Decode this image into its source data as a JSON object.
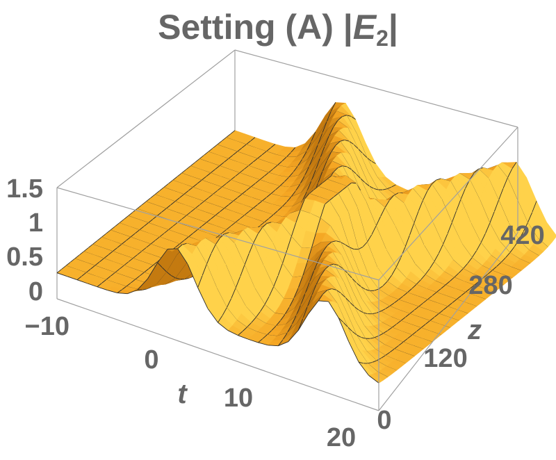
{
  "chart_data": {
    "type": "surface3d",
    "title": {
      "prefix": "Setting (A) |",
      "symbol": "E",
      "subscript": "2",
      "suffix": "|"
    },
    "xlabel": "t",
    "ylabel": "z",
    "xlim": [
      -10,
      20
    ],
    "ylim": [
      0,
      560
    ],
    "zlim": [
      0,
      1.5
    ],
    "x_ticks": [
      "−10",
      "0",
      "10",
      "20"
    ],
    "y_ticks": [
      "0",
      "120",
      "280",
      "420"
    ],
    "z_ticks": [
      "0",
      "0.5",
      "1",
      "1.5"
    ],
    "background_level": 0.35,
    "features": [
      {
        "kind": "soliton",
        "t_start": 1,
        "t_end": 16,
        "z_start": 0,
        "z_end": 560,
        "peak_height": 1.25,
        "width": 2.6
      },
      {
        "kind": "soliton",
        "t_start": 15,
        "t_end": 0,
        "z_start": 0,
        "z_end": 560,
        "peak_height": 1.25,
        "width": 2.6
      },
      {
        "kind": "dip",
        "t": 8.5,
        "z": 280,
        "depth": 0.3,
        "width": 3
      }
    ],
    "mesh_lines": {
      "t": 16,
      "z": 20
    },
    "colors": {
      "surface_light": "#ffd24a",
      "surface_mid": "#f5a623",
      "surface_dark": "#c47a10",
      "mesh": "#2b2b2b",
      "box": "#9a9a9a",
      "text": "#666666"
    }
  }
}
